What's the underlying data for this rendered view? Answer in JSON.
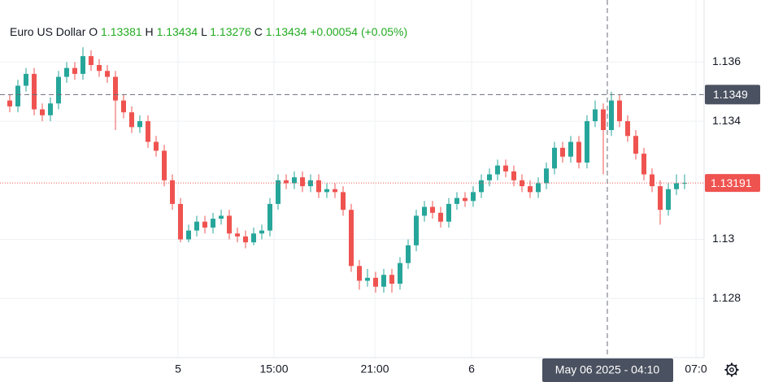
{
  "chart_data": {
    "type": "candlestick",
    "header": {
      "name": "Euro US Dollar",
      "o_label": "O",
      "open": 1.13381,
      "h_label": "H",
      "high": 1.13434,
      "l_label": "L",
      "low": 1.13276,
      "c_label": "C",
      "close": 1.13434,
      "change": "+0.00054",
      "change_pct": "(+0.05%)"
    },
    "up_color": "#26a69a",
    "down_color": "#ef5350",
    "x": [
      0,
      1,
      2,
      3,
      4,
      5,
      6,
      7,
      8,
      9,
      10,
      11,
      12,
      13,
      14,
      15,
      16,
      17,
      18,
      19,
      20,
      21,
      22,
      23,
      24,
      25,
      26,
      27,
      28,
      29,
      30,
      31,
      32,
      33,
      34,
      35,
      36,
      37,
      38,
      39,
      40,
      41,
      42,
      43,
      44,
      45,
      46,
      47,
      48,
      49,
      50,
      51,
      52,
      53,
      54,
      55,
      56,
      57,
      58,
      59,
      60,
      61,
      62,
      63,
      64,
      65,
      66,
      67,
      68,
      69,
      70,
      71,
      72,
      73,
      74,
      75,
      76,
      77,
      78,
      79,
      80,
      81,
      82,
      83
    ],
    "open": [
      1.1347,
      1.1345,
      1.1352,
      1.1356,
      1.1344,
      1.1342,
      1.1346,
      1.1355,
      1.1358,
      1.1356,
      1.1362,
      1.1359,
      1.1357,
      1.1355,
      1.1347,
      1.1343,
      1.1338,
      1.134,
      1.1333,
      1.133,
      1.132,
      1.1312,
      1.13,
      1.1303,
      1.1306,
      1.1304,
      1.1307,
      1.1308,
      1.1302,
      1.1301,
      1.1299,
      1.1302,
      1.1303,
      1.1312,
      1.132,
      1.1319,
      1.1321,
      1.1318,
      1.132,
      1.1316,
      1.1317,
      1.1316,
      1.131,
      1.1291,
      1.1286,
      1.1287,
      1.1284,
      1.1288,
      1.1285,
      1.1292,
      1.1298,
      1.1308,
      1.1311,
      1.1309,
      1.1306,
      1.1312,
      1.1314,
      1.1313,
      1.1316,
      1.132,
      1.1322,
      1.1325,
      1.1323,
      1.132,
      1.1318,
      1.1316,
      1.1319,
      1.1324,
      1.1331,
      1.1328,
      1.1333,
      1.1326,
      1.134,
      1.1344,
      1.1337,
      1.1347,
      1.134,
      1.1335,
      1.1329,
      1.1322,
      1.1318,
      1.131,
      1.1317,
      1.1319
    ],
    "high": [
      1.1349,
      1.1354,
      1.1358,
      1.1358,
      1.1346,
      1.1348,
      1.1357,
      1.136,
      1.136,
      1.1365,
      1.1364,
      1.1361,
      1.1359,
      1.1357,
      1.1349,
      1.1345,
      1.1342,
      1.1342,
      1.1335,
      1.1332,
      1.1322,
      1.1314,
      1.1305,
      1.1308,
      1.1308,
      1.1309,
      1.131,
      1.131,
      1.1304,
      1.1303,
      1.1304,
      1.1305,
      1.1314,
      1.1322,
      1.1322,
      1.1323,
      1.1323,
      1.1322,
      1.1322,
      1.1319,
      1.1319,
      1.1318,
      1.1312,
      1.1293,
      1.129,
      1.1289,
      1.129,
      1.129,
      1.1294,
      1.13,
      1.131,
      1.1313,
      1.1313,
      1.1311,
      1.1314,
      1.1316,
      1.1316,
      1.1318,
      1.1322,
      1.1324,
      1.1327,
      1.1327,
      1.1325,
      1.1322,
      1.132,
      1.1321,
      1.1326,
      1.1333,
      1.1333,
      1.1335,
      1.1335,
      1.1342,
      1.1347,
      1.1346,
      1.135,
      1.1349,
      1.1342,
      1.1337,
      1.1331,
      1.1324,
      1.132,
      1.1319,
      1.1322,
      1.1322
    ],
    "low": [
      1.1343,
      1.1343,
      1.135,
      1.1342,
      1.134,
      1.134,
      1.1344,
      1.1353,
      1.1354,
      1.1354,
      1.1357,
      1.1355,
      1.1353,
      1.1337,
      1.1341,
      1.1336,
      1.1336,
      1.1331,
      1.1328,
      1.1318,
      1.131,
      1.1299,
      1.1299,
      1.1301,
      1.1302,
      1.1302,
      1.1305,
      1.13,
      1.1299,
      1.1297,
      1.1298,
      1.13,
      1.1301,
      1.131,
      1.1317,
      1.1317,
      1.1316,
      1.1316,
      1.1314,
      1.1314,
      1.1314,
      1.1308,
      1.1289,
      1.1283,
      1.1284,
      1.1282,
      1.1282,
      1.1282,
      1.1283,
      1.129,
      1.1296,
      1.1306,
      1.1307,
      1.1304,
      1.1304,
      1.131,
      1.1311,
      1.1311,
      1.1314,
      1.1318,
      1.132,
      1.1321,
      1.1318,
      1.1316,
      1.1314,
      1.1314,
      1.1317,
      1.1322,
      1.1326,
      1.1326,
      1.1324,
      1.1324,
      1.1338,
      1.1322,
      1.1335,
      1.1338,
      1.1333,
      1.1327,
      1.132,
      1.1316,
      1.1305,
      1.1308,
      1.1315,
      1.1317
    ],
    "close": [
      1.1345,
      1.1352,
      1.1356,
      1.1344,
      1.1342,
      1.1346,
      1.1355,
      1.1358,
      1.1356,
      1.1362,
      1.1359,
      1.1357,
      1.1355,
      1.1347,
      1.1343,
      1.1338,
      1.134,
      1.1333,
      1.133,
      1.132,
      1.1312,
      1.13,
      1.1303,
      1.1306,
      1.1304,
      1.1307,
      1.1308,
      1.1302,
      1.1301,
      1.1299,
      1.1302,
      1.1303,
      1.1312,
      1.132,
      1.1319,
      1.1321,
      1.1318,
      1.132,
      1.1316,
      1.1317,
      1.1316,
      1.131,
      1.1291,
      1.1286,
      1.1287,
      1.1284,
      1.1288,
      1.1285,
      1.1292,
      1.1298,
      1.1308,
      1.1311,
      1.1309,
      1.1306,
      1.1312,
      1.1314,
      1.1313,
      1.1316,
      1.132,
      1.1322,
      1.1325,
      1.1323,
      1.132,
      1.1318,
      1.1316,
      1.1319,
      1.1324,
      1.1331,
      1.1328,
      1.1333,
      1.1326,
      1.134,
      1.1344,
      1.1337,
      1.1347,
      1.134,
      1.1335,
      1.1329,
      1.1322,
      1.1318,
      1.131,
      1.1317,
      1.1319,
      1.13191
    ],
    "xlim": [
      -1.2,
      85.4
    ],
    "xticks": [
      {
        "value": 20.7,
        "label": "5"
      },
      {
        "value": 32.5,
        "label": "15:00"
      },
      {
        "value": 44.9,
        "label": "21:00"
      },
      {
        "value": 56.8,
        "label": "6"
      },
      {
        "value": 84.4,
        "label": "07:0"
      }
    ],
    "ylim": [
      1.126,
      1.1381
    ],
    "yticks": [
      1.128,
      1.13,
      1.134,
      1.136
    ],
    "grid": true,
    "last_price": 1.13191,
    "crosshair": {
      "x": 73.5,
      "price": 1.1349,
      "x_label": "May 06 2025 - 04:10"
    }
  }
}
